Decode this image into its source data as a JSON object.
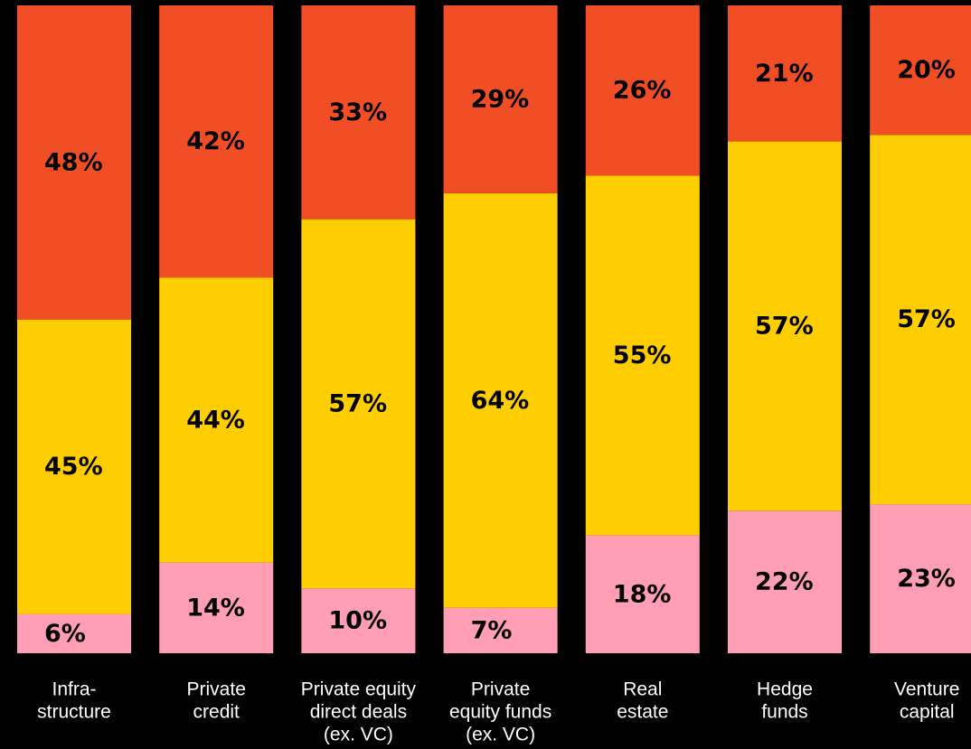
{
  "chart_data": {
    "type": "bar",
    "stacked": true,
    "categories": [
      [
        "Infra-",
        "structure"
      ],
      [
        "Private",
        "credit"
      ],
      [
        "Private equity",
        "direct deals",
        "(ex. VC)"
      ],
      [
        "Private",
        "equity funds",
        "(ex. VC)"
      ],
      [
        "Real",
        "estate"
      ],
      [
        "Hedge",
        "funds"
      ],
      [
        "Venture",
        "capital"
      ]
    ],
    "series": [
      {
        "color": "#FF9EB4",
        "values": [
          6,
          14,
          10,
          7,
          18,
          22,
          23
        ],
        "labels": [
          "6%",
          "14%",
          "10%",
          "7%",
          "18%",
          "22%",
          "23%"
        ]
      },
      {
        "color": "#FFCE00",
        "values": [
          45,
          44,
          57,
          64,
          55,
          57,
          57
        ],
        "labels": [
          "45%",
          "44%",
          "57%",
          "64%",
          "55%",
          "57%",
          "57%"
        ]
      },
      {
        "color": "#F24E26",
        "values": [
          48,
          42,
          33,
          29,
          26,
          21,
          20
        ],
        "labels": [
          "48%",
          "42%",
          "33%",
          "29%",
          "26%",
          "21%",
          "20%"
        ]
      }
    ],
    "ylim": [
      0,
      100
    ],
    "grid": false,
    "legend": "none",
    "background": "#000000",
    "label_color": "#000000",
    "category_label_color": "#FFFFFF"
  }
}
